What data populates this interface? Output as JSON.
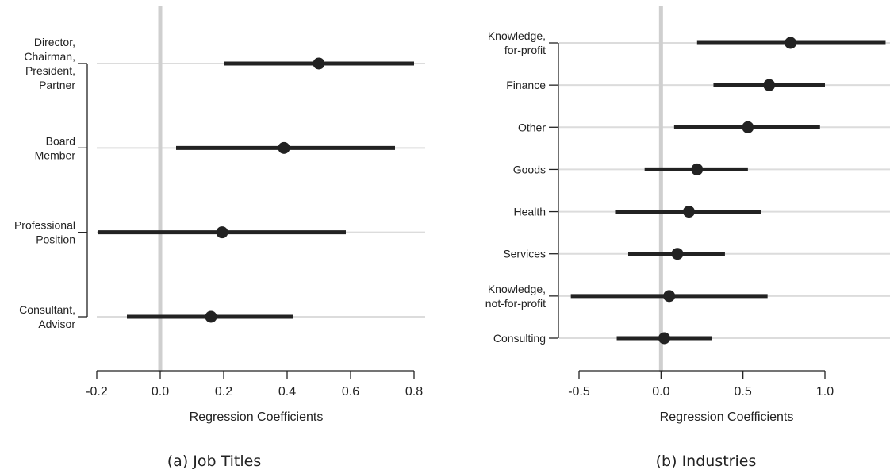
{
  "chart_data": [
    {
      "type": "forest",
      "caption": "(a) Job Titles",
      "xlabel": "Regression Coefficients",
      "xlim": [
        -0.2,
        0.8
      ],
      "xticks": [
        -0.2,
        0.0,
        0.2,
        0.4,
        0.6,
        0.8
      ],
      "xtick_labels": [
        "-0.2",
        "0.0",
        "0.2",
        "0.4",
        "0.6",
        "0.8"
      ],
      "reference_line": 0.0,
      "categories": [
        {
          "label": [
            "Director,",
            "Chairman,",
            "President,",
            "Partner"
          ],
          "estimate": 0.5,
          "low": 0.2,
          "high": 0.8
        },
        {
          "label": [
            "Board",
            "Member"
          ],
          "estimate": 0.39,
          "low": 0.05,
          "high": 0.74
        },
        {
          "label": [
            "Professional",
            "Position"
          ],
          "estimate": 0.195,
          "low": -0.195,
          "high": 0.585
        },
        {
          "label": [
            "Consultant,",
            "Advisor"
          ],
          "estimate": 0.16,
          "low": -0.105,
          "high": 0.42
        }
      ]
    },
    {
      "type": "forest",
      "caption": "(b) Industries",
      "xlabel": "Regression Coefficients",
      "xlim": [
        -0.5,
        1.0
      ],
      "xticks": [
        -0.5,
        0.0,
        0.5,
        1.0
      ],
      "xtick_labels": [
        "-0.5",
        "0.0",
        "0.5",
        "1.0"
      ],
      "reference_line": 0.0,
      "categories": [
        {
          "label": [
            "Knowledge,",
            "for-profit"
          ],
          "estimate": 0.79,
          "low": 0.22,
          "high": 1.37
        },
        {
          "label": [
            "Finance"
          ],
          "estimate": 0.66,
          "low": 0.32,
          "high": 1.0
        },
        {
          "label": [
            "Other"
          ],
          "estimate": 0.53,
          "low": 0.08,
          "high": 0.97
        },
        {
          "label": [
            "Goods"
          ],
          "estimate": 0.22,
          "low": -0.1,
          "high": 0.53
        },
        {
          "label": [
            "Health"
          ],
          "estimate": 0.17,
          "low": -0.28,
          "high": 0.61
        },
        {
          "label": [
            "Services"
          ],
          "estimate": 0.1,
          "low": -0.2,
          "high": 0.39
        },
        {
          "label": [
            "Knowledge,",
            "not-for-profit"
          ],
          "estimate": 0.05,
          "low": -0.55,
          "high": 0.65
        },
        {
          "label": [
            "Consulting"
          ],
          "estimate": 0.02,
          "low": -0.27,
          "high": 0.31
        }
      ]
    }
  ],
  "colors": {
    "estimate": "#222222",
    "interval": "#222222",
    "gridline": "#dcdcdc",
    "zero_line": "#cfcfcf",
    "axis": "#222222"
  }
}
